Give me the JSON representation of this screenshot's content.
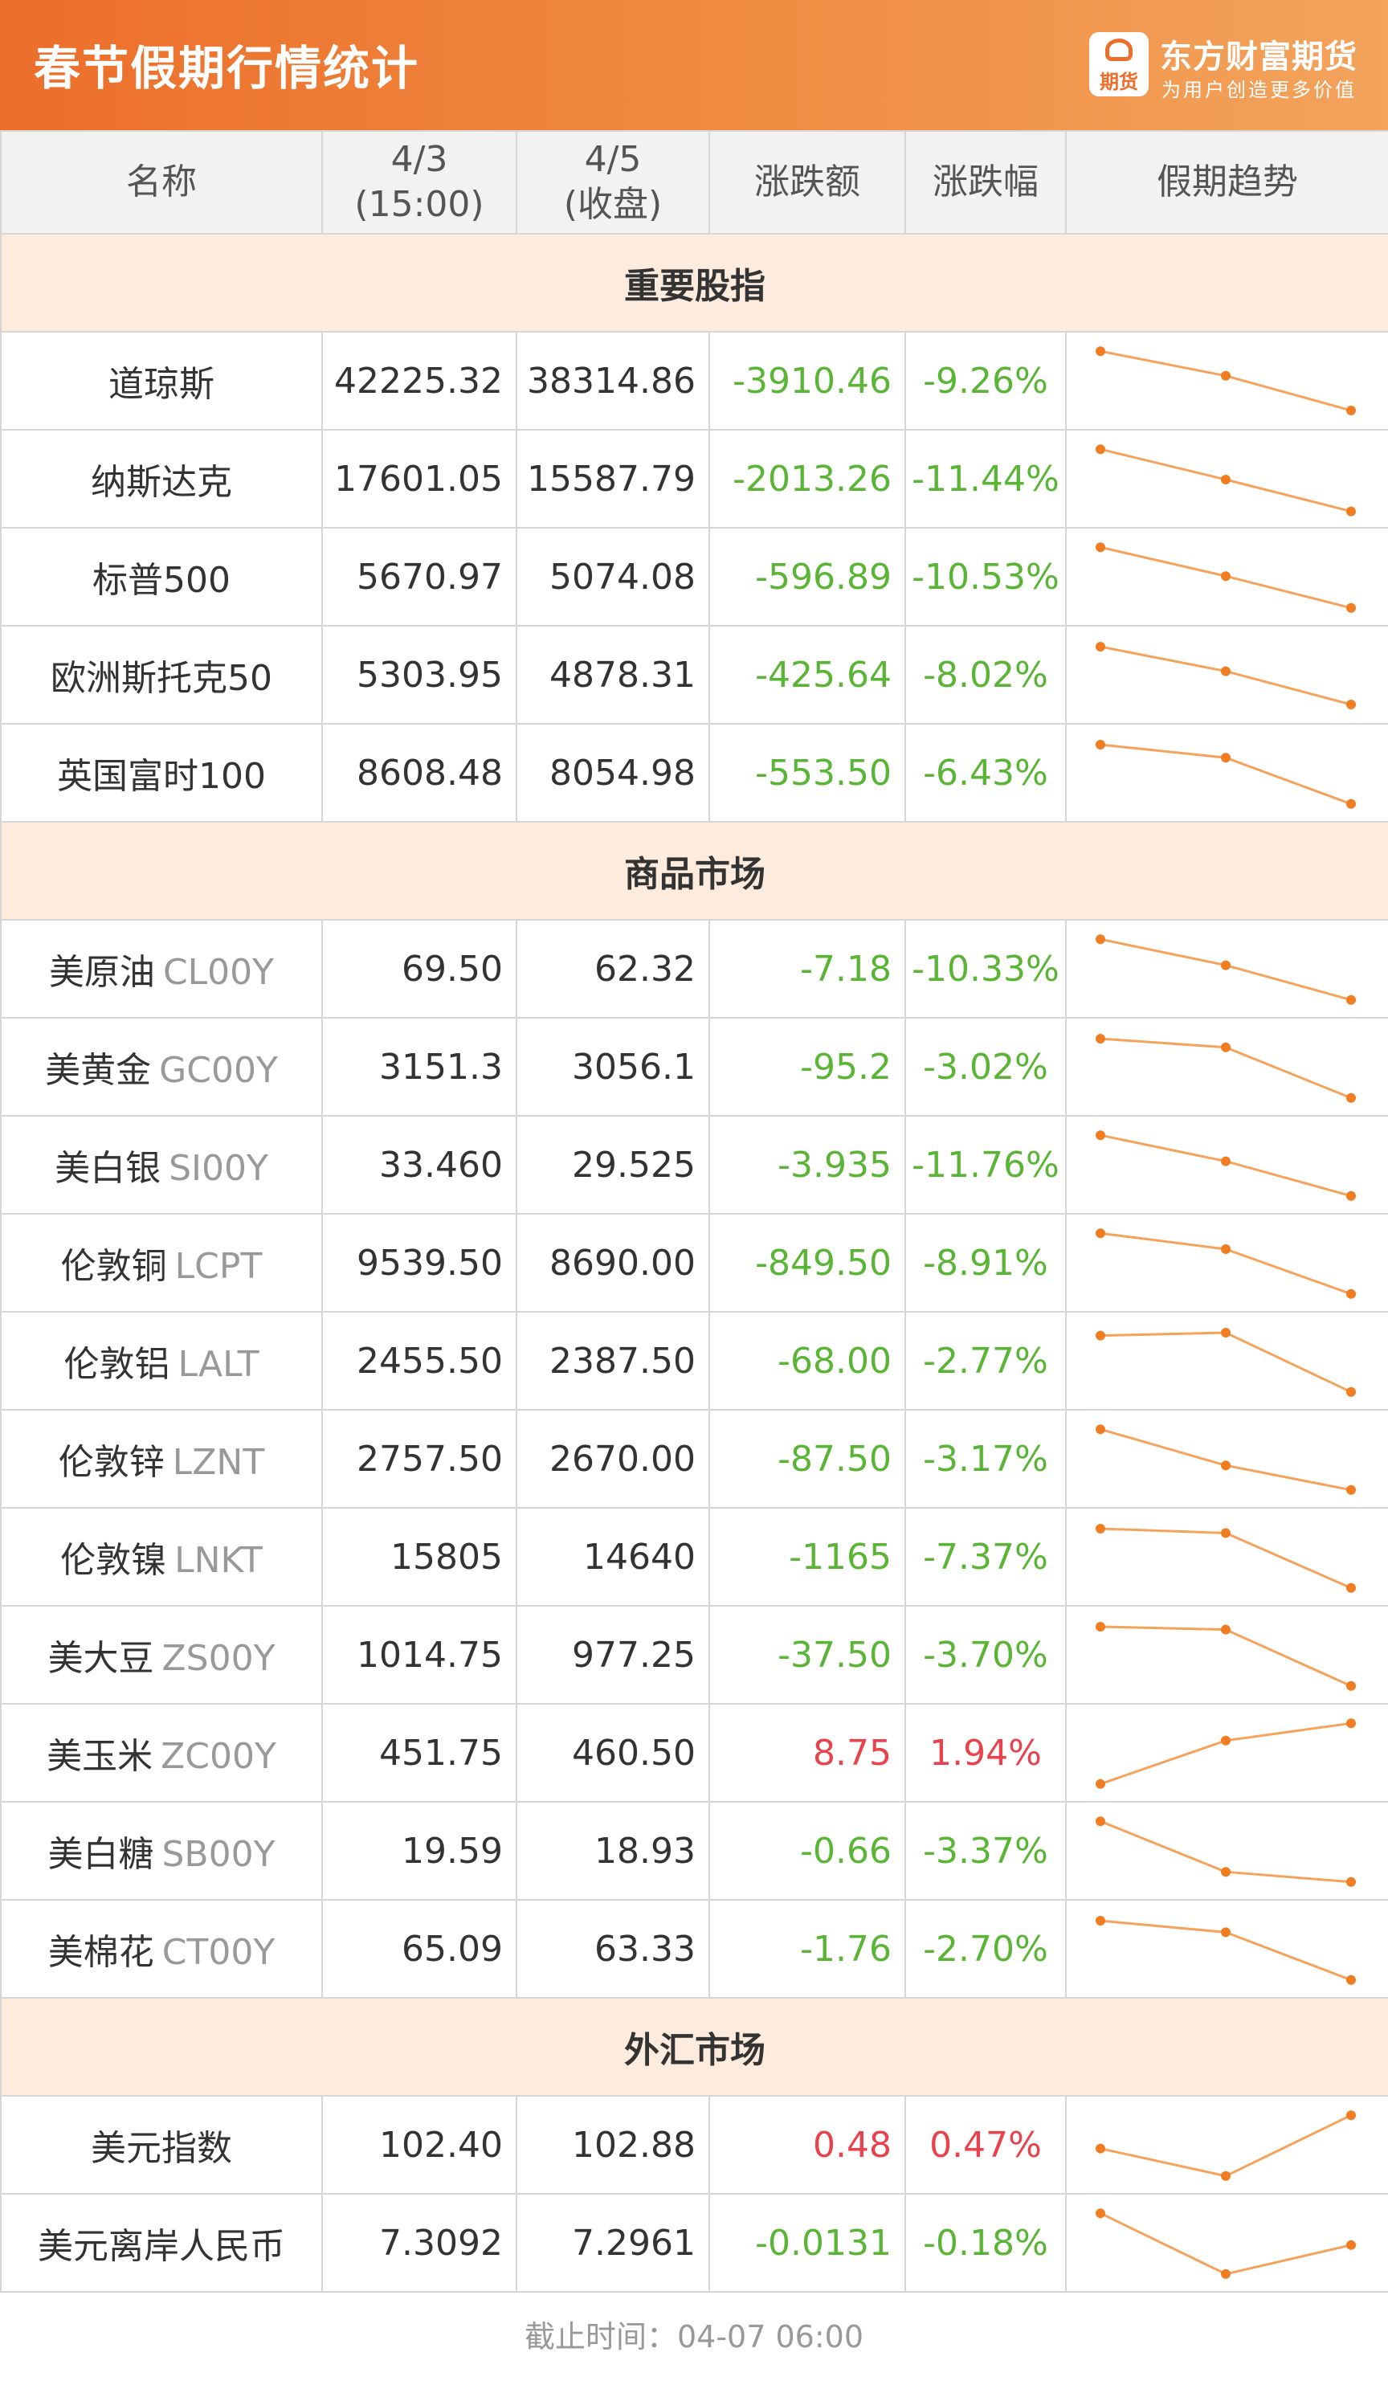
{
  "header": {
    "title": "春节假期行情统计",
    "brand_name": "东方财富期货",
    "brand_slogan": "为用户创造更多价值",
    "logo_text": "期货",
    "accent_color": "#ec6e2a"
  },
  "columns": {
    "name": "名称",
    "d1_date": "4/3",
    "d1_note": "(15:00)",
    "d2_date": "4/5",
    "d2_note": "(收盘)",
    "change": "涨跌额",
    "pct": "涨跌幅",
    "trend": "假期趋势"
  },
  "sections": [
    {
      "title": "重要股指",
      "rows": [
        {
          "name": "道琼斯",
          "code": "",
          "v1": "42225.32",
          "v2": "38314.86",
          "change": "-3910.46",
          "pct": "-9.26%",
          "dir": "down",
          "trend": [
            0.92,
            0.58,
            0.1
          ]
        },
        {
          "name": "纳斯达克",
          "code": "",
          "v1": "17601.05",
          "v2": "15587.79",
          "change": "-2013.26",
          "pct": "-11.44%",
          "dir": "down",
          "trend": [
            0.92,
            0.5,
            0.06
          ]
        },
        {
          "name": "标普500",
          "code": "",
          "v1": "5670.97",
          "v2": "5074.08",
          "change": "-596.89",
          "pct": "-10.53%",
          "dir": "down",
          "trend": [
            0.92,
            0.52,
            0.08
          ]
        },
        {
          "name": "欧洲斯托克50",
          "code": "",
          "v1": "5303.95",
          "v2": "4878.31",
          "change": "-425.64",
          "pct": "-8.02%",
          "dir": "down",
          "trend": [
            0.9,
            0.56,
            0.1
          ]
        },
        {
          "name": "英国富时100",
          "code": "",
          "v1": "8608.48",
          "v2": "8054.98",
          "change": "-553.50",
          "pct": "-6.43%",
          "dir": "down",
          "trend": [
            0.9,
            0.72,
            0.08
          ]
        }
      ]
    },
    {
      "title": "商品市场",
      "rows": [
        {
          "name": "美原油",
          "code": "CL00Y",
          "v1": "69.50",
          "v2": "62.32",
          "change": "-7.18",
          "pct": "-10.33%",
          "dir": "down",
          "trend": [
            0.92,
            0.56,
            0.08
          ]
        },
        {
          "name": "美黄金",
          "code": "GC00Y",
          "v1": "3151.3",
          "v2": "3056.1",
          "change": "-95.2",
          "pct": "-3.02%",
          "dir": "down",
          "trend": [
            0.9,
            0.78,
            0.08
          ]
        },
        {
          "name": "美白银",
          "code": "SI00Y",
          "v1": "33.460",
          "v2": "29.525",
          "change": "-3.935",
          "pct": "-11.76%",
          "dir": "down",
          "trend": [
            0.92,
            0.56,
            0.08
          ]
        },
        {
          "name": "伦敦铜",
          "code": "LCPT",
          "v1": "9539.50",
          "v2": "8690.00",
          "change": "-849.50",
          "pct": "-8.91%",
          "dir": "down",
          "trend": [
            0.92,
            0.7,
            0.08
          ]
        },
        {
          "name": "伦敦铝",
          "code": "LALT",
          "v1": "2455.50",
          "v2": "2387.50",
          "change": "-68.00",
          "pct": "-2.77%",
          "dir": "down",
          "trend": [
            0.86,
            0.9,
            0.08
          ]
        },
        {
          "name": "伦敦锌",
          "code": "LZNT",
          "v1": "2757.50",
          "v2": "2670.00",
          "change": "-87.50",
          "pct": "-3.17%",
          "dir": "down",
          "trend": [
            0.92,
            0.42,
            0.08
          ]
        },
        {
          "name": "伦敦镍",
          "code": "LNKT",
          "v1": "15805",
          "v2": "14640",
          "change": "-1165",
          "pct": "-7.37%",
          "dir": "down",
          "trend": [
            0.9,
            0.84,
            0.08
          ]
        },
        {
          "name": "美大豆",
          "code": "ZS00Y",
          "v1": "1014.75",
          "v2": "977.25",
          "change": "-37.50",
          "pct": "-3.70%",
          "dir": "down",
          "trend": [
            0.9,
            0.86,
            0.08
          ]
        },
        {
          "name": "美玉米",
          "code": "ZC00Y",
          "v1": "451.75",
          "v2": "460.50",
          "change": "8.75",
          "pct": "1.94%",
          "dir": "up",
          "trend": [
            0.08,
            0.68,
            0.92
          ]
        },
        {
          "name": "美白糖",
          "code": "SB00Y",
          "v1": "19.59",
          "v2": "18.93",
          "change": "-0.66",
          "pct": "-3.37%",
          "dir": "down",
          "trend": [
            0.92,
            0.22,
            0.08
          ]
        },
        {
          "name": "美棉花",
          "code": "CT00Y",
          "v1": "65.09",
          "v2": "63.33",
          "change": "-1.76",
          "pct": "-2.70%",
          "dir": "down",
          "trend": [
            0.9,
            0.74,
            0.08
          ]
        }
      ]
    },
    {
      "title": "外汇市场",
      "rows": [
        {
          "name": "美元指数",
          "code": "",
          "v1": "102.40",
          "v2": "102.88",
          "change": "0.48",
          "pct": "0.47%",
          "dir": "up",
          "trend": [
            0.46,
            0.08,
            0.92
          ]
        },
        {
          "name": "美元离岸人民币",
          "code": "",
          "v1": "7.3092",
          "v2": "7.2961",
          "change": "-0.0131",
          "pct": "-0.18%",
          "dir": "down",
          "trend": [
            0.92,
            0.08,
            0.48
          ]
        }
      ]
    }
  ],
  "footer": {
    "text": "截止时间：04-07 06:00"
  },
  "colors": {
    "down": "#5ab435",
    "up": "#e8424c",
    "trend_line": "#f5a35c",
    "trend_dot": "#f07d22"
  }
}
